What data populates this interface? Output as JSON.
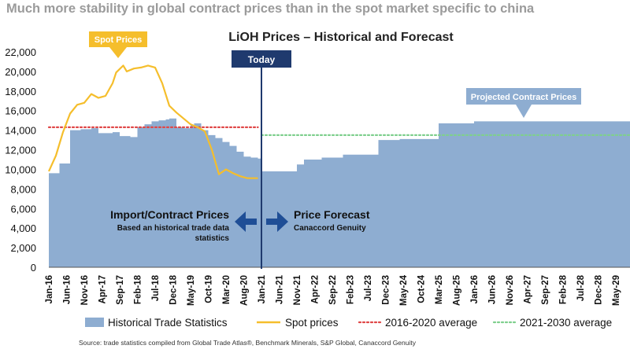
{
  "headline": "Much more stability in global contract prices than in the spot market specific to china",
  "source": "Source: trade statistics compiled from Global Trade Atlas®, Benchmark Minerals, S&P Global, Canaccord Genuity",
  "colors": {
    "headline": "#9b9b9b",
    "area": "#8eadd1",
    "spot": "#f5be2c",
    "avg1": "#e04848",
    "avg2": "#7fcf8e",
    "today": "#1f3a6e",
    "arrow": "#1f4e96",
    "text": "#111111"
  },
  "chart_data": {
    "type": "area",
    "title": "LiOH Prices – Historical and Forecast",
    "ylim": [
      0,
      22000
    ],
    "yticks": [
      "0",
      "2,000",
      "4,000",
      "6,000",
      "8,000",
      "10,000",
      "12,000",
      "14,000",
      "16,000",
      "18,000",
      "20,000",
      "22,000"
    ],
    "xticks": [
      "Jan-16",
      "Jun-16",
      "Nov-16",
      "Apr-17",
      "Sep-17",
      "Feb-18",
      "Jul-18",
      "Dec-18",
      "May-19",
      "Oct-19",
      "Mar-20",
      "Aug-20",
      "Jan-21",
      "Jun-21",
      "Nov-21",
      "Apr-22",
      "Sep-22",
      "Feb-23",
      "Jul-23",
      "Dec-23",
      "May-24",
      "Oct-24",
      "Mar-25",
      "Aug-25",
      "Jan-26",
      "Jun-26",
      "Nov-26",
      "Apr-27",
      "Sep-27",
      "Feb-28",
      "Jul-28",
      "Dec-28",
      "May-29"
    ],
    "x_start": "2016-01",
    "x_end": "2029-09",
    "series": [
      {
        "name": "Historical Trade Statistics",
        "type": "area",
        "step": true,
        "points": [
          [
            "2016-01",
            9600
          ],
          [
            "2016-04",
            10600
          ],
          [
            "2016-07",
            14000
          ],
          [
            "2016-10",
            14100
          ],
          [
            "2017-01",
            14200
          ],
          [
            "2017-03",
            13700
          ],
          [
            "2017-07",
            13800
          ],
          [
            "2017-09",
            13400
          ],
          [
            "2017-12",
            13300
          ],
          [
            "2018-02",
            14300
          ],
          [
            "2018-04",
            14600
          ],
          [
            "2018-06",
            14900
          ],
          [
            "2018-08",
            15000
          ],
          [
            "2018-10",
            15100
          ],
          [
            "2018-11",
            15200
          ],
          [
            "2019-01",
            14300
          ],
          [
            "2019-03",
            14200
          ],
          [
            "2019-05",
            14500
          ],
          [
            "2019-06",
            14700
          ],
          [
            "2019-08",
            14000
          ],
          [
            "2019-10",
            13500
          ],
          [
            "2019-12",
            13200
          ],
          [
            "2020-02",
            12800
          ],
          [
            "2020-04",
            12400
          ],
          [
            "2020-06",
            11800
          ],
          [
            "2020-08",
            11300
          ],
          [
            "2020-10",
            11200
          ],
          [
            "2020-12",
            11100
          ],
          [
            "2021-01",
            9800
          ],
          [
            "2021-11",
            10500
          ],
          [
            "2022-01",
            11000
          ],
          [
            "2022-06",
            11200
          ],
          [
            "2022-12",
            11500
          ],
          [
            "2023-10",
            13000
          ],
          [
            "2024-01",
            13000
          ],
          [
            "2024-04",
            13100
          ],
          [
            "2024-10",
            13100
          ],
          [
            "2025-03",
            14700
          ],
          [
            "2025-10",
            14700
          ],
          [
            "2026-01",
            14900
          ],
          [
            "2029-09",
            14900
          ]
        ]
      },
      {
        "name": "Spot prices",
        "type": "line",
        "points": [
          [
            "2016-01",
            9800
          ],
          [
            "2016-03",
            11400
          ],
          [
            "2016-05",
            13800
          ],
          [
            "2016-07",
            15700
          ],
          [
            "2016-09",
            16600
          ],
          [
            "2016-11",
            16800
          ],
          [
            "2017-01",
            17700
          ],
          [
            "2017-03",
            17300
          ],
          [
            "2017-05",
            17500
          ],
          [
            "2017-07",
            18800
          ],
          [
            "2017-08",
            19900
          ],
          [
            "2017-10",
            20600
          ],
          [
            "2017-11",
            20000
          ],
          [
            "2018-01",
            20300
          ],
          [
            "2018-03",
            20400
          ],
          [
            "2018-05",
            20600
          ],
          [
            "2018-07",
            20400
          ],
          [
            "2018-09",
            18800
          ],
          [
            "2018-11",
            16500
          ],
          [
            "2019-01",
            15800
          ],
          [
            "2019-03",
            15200
          ],
          [
            "2019-05",
            14600
          ],
          [
            "2019-07",
            14300
          ],
          [
            "2019-09",
            13900
          ],
          [
            "2019-11",
            12000
          ],
          [
            "2020-01",
            9500
          ],
          [
            "2020-03",
            10000
          ],
          [
            "2020-05",
            9600
          ],
          [
            "2020-07",
            9300
          ],
          [
            "2020-09",
            9100
          ],
          [
            "2020-12",
            9100
          ]
        ]
      },
      {
        "name": "2016-2020 average",
        "type": "dotted",
        "value": 14300,
        "from": "2016-01",
        "to": "2020-12"
      },
      {
        "name": "2021-2030 average",
        "type": "dotted",
        "value": 13500,
        "from": "2021-01",
        "to": "2029-09"
      }
    ],
    "today": "2021-01",
    "annotations": {
      "today_label": "Today",
      "spot_callout": "Spot Prices",
      "projected_callout": "Projected Contract Prices",
      "left_title": "Import/Contract Prices",
      "left_sub1": "Based an historical trade data",
      "left_sub2": "statistics",
      "right_title": "Price Forecast",
      "right_sub": "Canaccord Genuity"
    },
    "legend": [
      "Historical Trade Statistics",
      "Spot prices",
      "2016-2020 average",
      "2021-2030 average"
    ],
    "legend_position": "bottom"
  }
}
